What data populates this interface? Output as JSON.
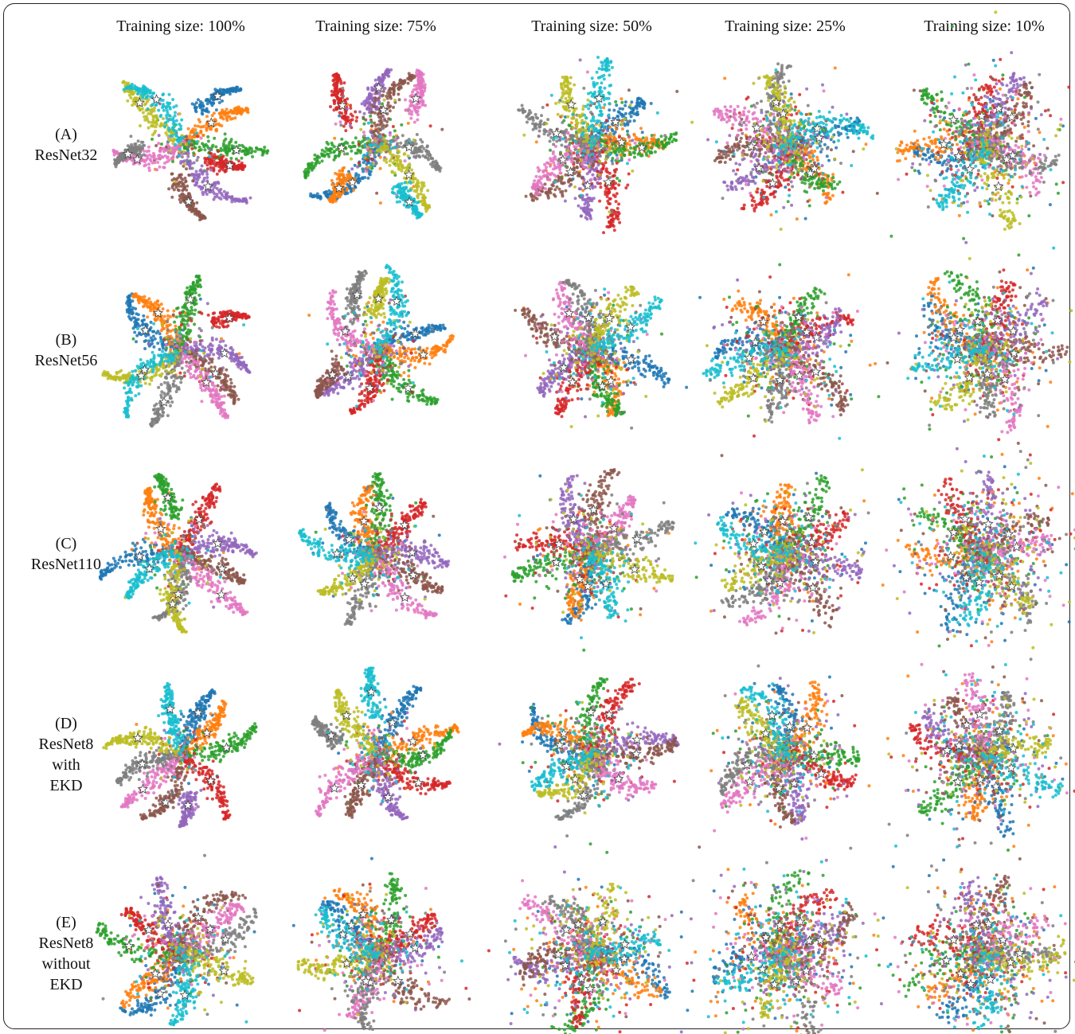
{
  "columns": [
    {
      "label": "Training size: 100%",
      "spread": 0.1
    },
    {
      "label": "Training size: 75%",
      "spread": 0.22
    },
    {
      "label": "Training size: 50%",
      "spread": 0.4
    },
    {
      "label": "Training size: 25%",
      "spread": 0.58
    },
    {
      "label": "Training size: 10%",
      "spread": 0.78
    }
  ],
  "rows": [
    {
      "lines": [
        "(A)",
        "ResNet32"
      ],
      "mix": 0.0
    },
    {
      "lines": [
        "(B)",
        "ResNet56"
      ],
      "mix": 0.05
    },
    {
      "lines": [
        "(C)",
        "ResNet110"
      ],
      "mix": 0.12
    },
    {
      "lines": [
        "(D)",
        "ResNet8",
        "with",
        "EKD"
      ],
      "mix": 0.02
    },
    {
      "lines": [
        "(E)",
        "ResNet8",
        "without",
        "EKD"
      ],
      "mix": 0.35
    }
  ],
  "class_colors": [
    "#1f77b4",
    "#ff7f0e",
    "#2ca02c",
    "#d62728",
    "#9467bd",
    "#8c564b",
    "#e377c2",
    "#7f7f7f",
    "#bcbd22",
    "#17becf"
  ],
  "marker": "star"
}
